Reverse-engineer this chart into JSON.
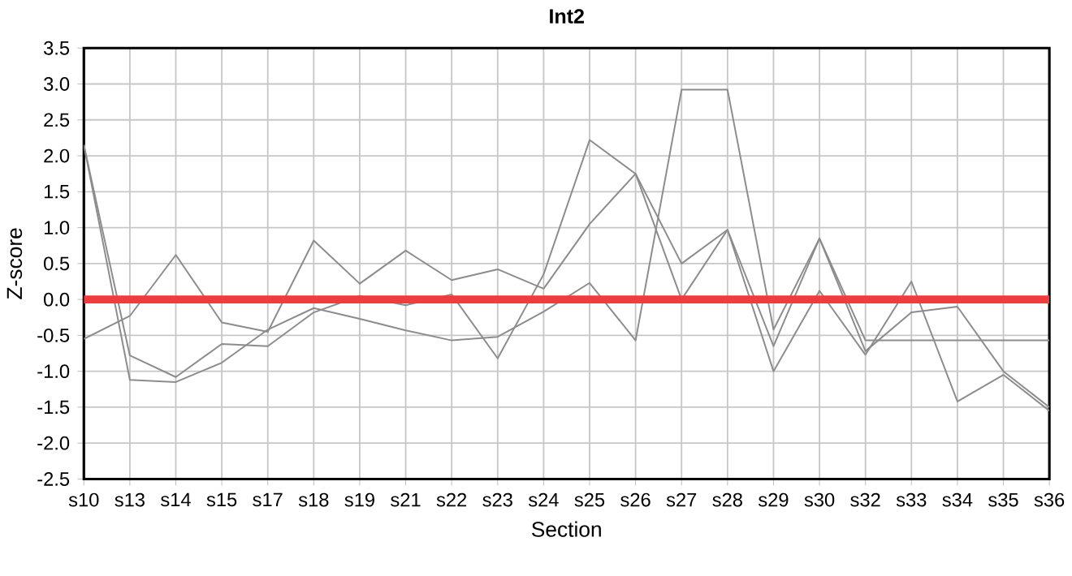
{
  "chart_data": {
    "type": "line",
    "title": "Int2",
    "xlabel": "Section",
    "ylabel": "Z-score",
    "categories": [
      "s10",
      "s13",
      "s14",
      "s15",
      "s17",
      "s18",
      "s19",
      "s21",
      "s22",
      "s23",
      "s24",
      "s25",
      "s26",
      "s27",
      "s28",
      "s29",
      "s30",
      "s32",
      "s33",
      "s34",
      "s35",
      "s36"
    ],
    "series": [
      {
        "color": "#8c8c8c",
        "values": [
          -0.55,
          -0.23,
          0.62,
          -0.32,
          -0.45,
          0.82,
          0.22,
          0.68,
          0.27,
          0.42,
          0.15,
          1.05,
          1.75,
          0.5,
          0.97,
          -0.65,
          0.85,
          -0.72,
          -0.18,
          -0.1,
          -1.0,
          -1.5
        ]
      },
      {
        "color": "#8c8c8c",
        "values": [
          2.15,
          -0.78,
          -1.08,
          -0.62,
          -0.65,
          -0.18,
          0.05,
          -0.08,
          0.07,
          -0.82,
          0.35,
          2.22,
          1.75,
          0.0,
          0.97,
          -1.0,
          0.12,
          -0.77,
          0.25,
          -1.42,
          -1.05,
          -1.55
        ]
      },
      {
        "color": "#8c8c8c",
        "values": [
          2.15,
          -1.12,
          -1.15,
          -0.88,
          -0.42,
          -0.12,
          -0.27,
          -0.43,
          -0.57,
          -0.52,
          -0.17,
          0.23,
          -0.57,
          2.92,
          2.92,
          -0.42,
          0.85,
          -0.57,
          -0.57,
          -0.57,
          -0.57,
          -0.57
        ]
      }
    ],
    "ylim": [
      -2.5,
      3.5
    ],
    "yticks": [
      -2.5,
      {
        "value": -2,
        "label": "-2.0"
      },
      -1.5,
      {
        "value": -1,
        "label": "-1.0"
      },
      -0.5,
      {
        "value": 0,
        "label": "0.0"
      },
      0.5,
      {
        "value": 1,
        "label": "1.0"
      },
      1.5,
      {
        "value": 2,
        "label": "2.0"
      },
      2.5,
      {
        "value": 3,
        "label": "3.0"
      },
      3.5
    ],
    "ref_lines": [
      {
        "axis": "y",
        "value": 0,
        "color": "#f03c3c"
      }
    ],
    "grid": true,
    "marker": "none",
    "line_style": "solid"
  }
}
